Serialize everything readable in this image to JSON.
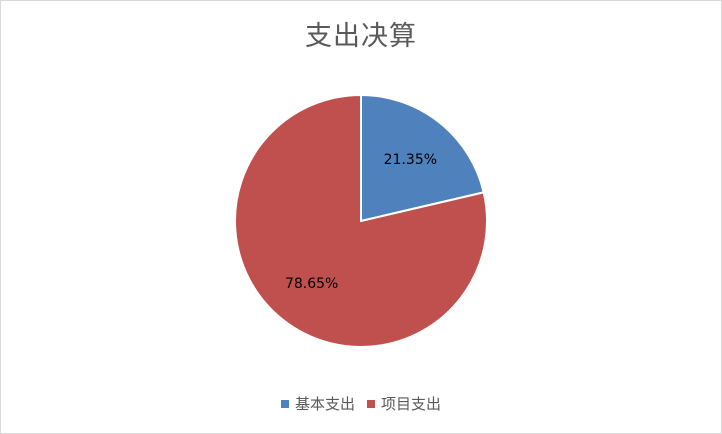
{
  "chart_data": {
    "type": "pie",
    "title": "支出决算",
    "categories": [
      "基本支出",
      "项目支出"
    ],
    "values": [
      21.35,
      78.65
    ],
    "data_labels": [
      "21.35%",
      "78.65%"
    ],
    "colors": [
      "#4f81bd",
      "#c0504d"
    ],
    "legend_position": "bottom"
  }
}
